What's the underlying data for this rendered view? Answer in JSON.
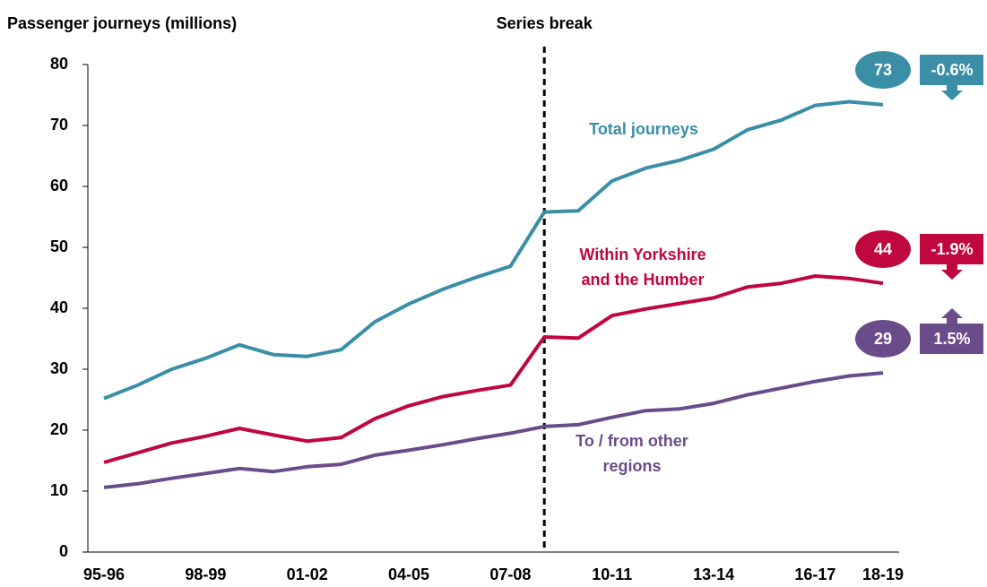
{
  "chart_data": {
    "type": "line",
    "y_axis_label": "Passenger journeys (millions)",
    "series_break": {
      "label": "Series break",
      "at_index": 13
    },
    "categories": [
      "95-96",
      null,
      null,
      "98-99",
      null,
      null,
      "01-02",
      null,
      null,
      "04-05",
      null,
      null,
      "07-08",
      null,
      null,
      "10-11",
      null,
      null,
      "13-14",
      null,
      null,
      "16-17",
      null,
      "18-19"
    ],
    "ylim": [
      0,
      80
    ],
    "yticks": [
      0,
      10,
      20,
      30,
      40,
      50,
      60,
      70,
      80
    ],
    "series": [
      {
        "label": [
          "Total journeys"
        ],
        "color": "#3a8ea5",
        "values": [
          25.2,
          27.4,
          30.0,
          31.8,
          34.0,
          32.4,
          32.1,
          33.2,
          37.8,
          40.7,
          43.1,
          45.1,
          46.9,
          55.8,
          56.0,
          60.9,
          63.0,
          64.3,
          66.1,
          69.3,
          70.9,
          73.3,
          73.9,
          73.4
        ],
        "end_label": "73",
        "change": -0.6,
        "change_label": "-0.6%"
      },
      {
        "label": [
          "Within Yorkshire",
          "and the Humber"
        ],
        "color": "#c0063f",
        "values": [
          14.7,
          16.3,
          17.9,
          19.0,
          20.3,
          19.2,
          18.2,
          18.8,
          21.9,
          24.0,
          25.5,
          26.5,
          27.4,
          35.3,
          35.1,
          38.8,
          39.9,
          40.8,
          41.7,
          43.5,
          44.1,
          45.3,
          44.9,
          44.1
        ],
        "end_label": "44",
        "change": -1.9,
        "change_label": "-1.9%"
      },
      {
        "label": [
          "To / from other",
          "regions"
        ],
        "color": "#6b4c8a",
        "values": [
          10.6,
          11.2,
          12.1,
          12.9,
          13.7,
          13.2,
          14.0,
          14.4,
          15.9,
          16.7,
          17.6,
          18.6,
          19.5,
          20.6,
          20.9,
          22.1,
          23.2,
          23.5,
          24.4,
          25.8,
          26.9,
          28.0,
          28.9,
          29.4
        ],
        "end_label": "29",
        "change": 1.5,
        "change_label": "1.5%"
      }
    ]
  }
}
